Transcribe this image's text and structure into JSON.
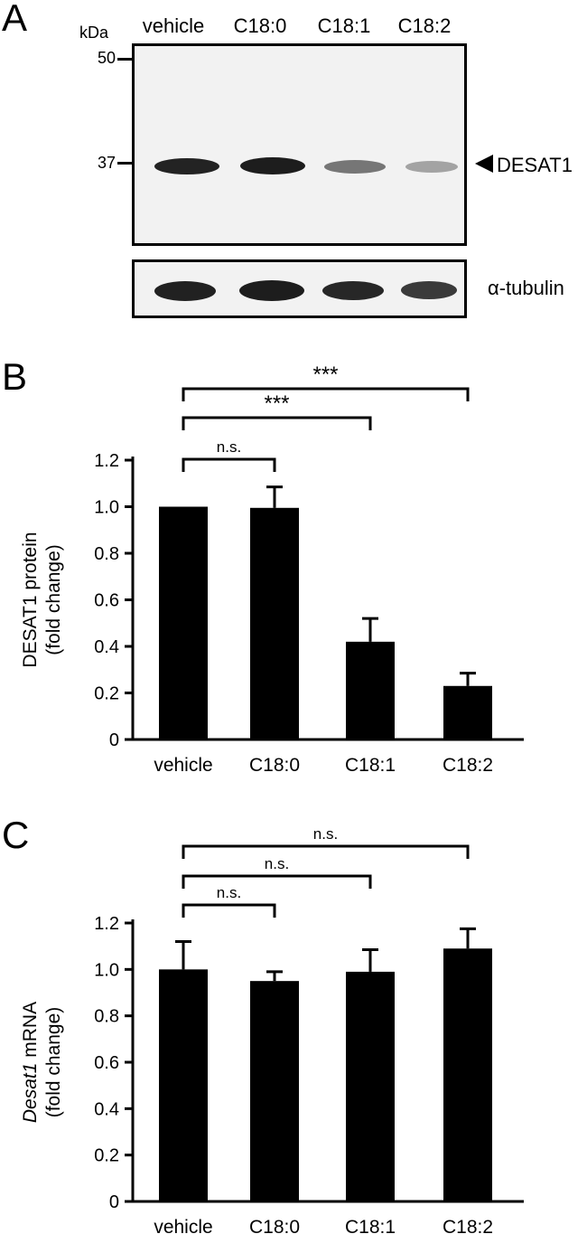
{
  "panels": {
    "a": {
      "letter": "A"
    },
    "b": {
      "letter": "B"
    },
    "c": {
      "letter": "C"
    }
  },
  "blot": {
    "unit": "kDa",
    "lanes": [
      "vehicle",
      "C18:0",
      "C18:1",
      "C18:2"
    ],
    "markers": [
      "50",
      "37"
    ],
    "target_label": "DESAT1",
    "target_band_intensity": [
      1.0,
      1.0,
      0.42,
      0.23
    ],
    "loading_label": "α-tubulin",
    "loading_band_intensity": [
      1.0,
      1.0,
      0.95,
      0.85
    ]
  },
  "chart_data": [
    {
      "type": "bar",
      "categories": [
        "vehicle",
        "C18:0",
        "C18:1",
        "C18:2"
      ],
      "values": [
        1.0,
        0.995,
        0.42,
        0.23
      ],
      "errors": [
        0.0,
        0.09,
        0.1,
        0.055
      ],
      "ylabel_line1": "DESAT1 protein",
      "ylabel_line2": "(fold change)",
      "ylim": [
        0,
        1.2
      ],
      "yticks": [
        "0",
        "0.2",
        "0.4",
        "0.6",
        "0.8",
        "1.0",
        "1.2"
      ],
      "significance": [
        {
          "from": 0,
          "to": 1,
          "label": "n.s."
        },
        {
          "from": 0,
          "to": 2,
          "label": "***"
        },
        {
          "from": 0,
          "to": 3,
          "label": "***"
        }
      ],
      "bar_color": "#000000"
    },
    {
      "type": "bar",
      "categories": [
        "vehicle",
        "C18:0",
        "C18:1",
        "C18:2"
      ],
      "values": [
        1.0,
        0.95,
        0.99,
        1.09
      ],
      "errors": [
        0.12,
        0.04,
        0.095,
        0.085
      ],
      "ylabel_italic": "Desat1",
      "ylabel_rest": " mRNA",
      "ylabel_line2": "(fold change)",
      "ylim": [
        0,
        1.2
      ],
      "yticks": [
        "0",
        "0.2",
        "0.4",
        "0.6",
        "0.8",
        "1.0",
        "1.2"
      ],
      "significance": [
        {
          "from": 0,
          "to": 1,
          "label": "n.s."
        },
        {
          "from": 0,
          "to": 2,
          "label": "n.s."
        },
        {
          "from": 0,
          "to": 3,
          "label": "n.s."
        }
      ],
      "bar_color": "#000000"
    }
  ]
}
